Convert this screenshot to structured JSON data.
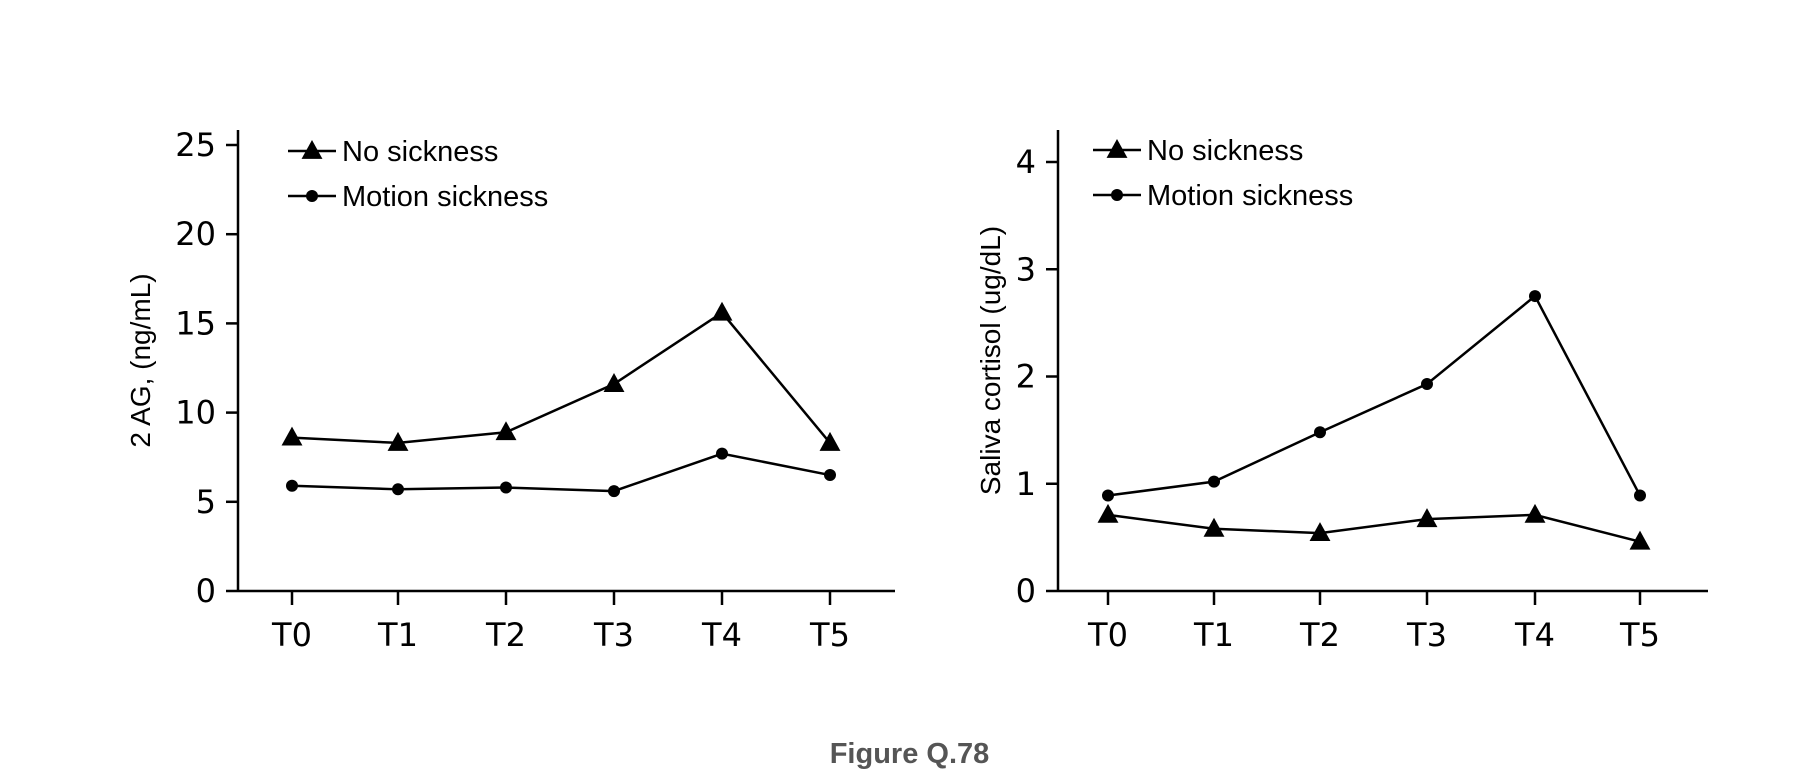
{
  "figure": {
    "caption": "Figure Q.78"
  },
  "chart_data": [
    {
      "type": "line",
      "title": "",
      "xlabel": "",
      "ylabel": "2 AG, (ng/mL)",
      "categories": [
        "T0",
        "T1",
        "T2",
        "T3",
        "T4",
        "T5"
      ],
      "ylim": [
        0,
        25
      ],
      "yticks": [
        0,
        5,
        10,
        15,
        20,
        25
      ],
      "ytick_labels": [
        "0",
        "5",
        "10",
        "15",
        "20",
        "25"
      ],
      "grid": false,
      "legend_position": "top-left",
      "series": [
        {
          "name": "No sickness",
          "marker": "triangle",
          "color": "#000000",
          "values": [
            8.6,
            8.3,
            8.9,
            11.6,
            15.6,
            8.3
          ]
        },
        {
          "name": "Motion sickness",
          "marker": "circle",
          "color": "#000000",
          "values": [
            5.9,
            5.7,
            5.8,
            5.6,
            7.7,
            6.5
          ]
        }
      ]
    },
    {
      "type": "line",
      "title": "",
      "xlabel": "",
      "ylabel": "Saliva cortisol (ug/dL)",
      "categories": [
        "T0",
        "T1",
        "T2",
        "T3",
        "T4",
        "T5"
      ],
      "ylim": [
        0,
        4.3
      ],
      "yticks": [
        0,
        1,
        2,
        3,
        4
      ],
      "ytick_labels": [
        "0",
        "1",
        "2",
        "3",
        "4"
      ],
      "grid": false,
      "legend_position": "top-left",
      "series": [
        {
          "name": "No sickness",
          "marker": "triangle",
          "color": "#000000",
          "values": [
            0.71,
            0.58,
            0.54,
            0.67,
            0.71,
            0.46
          ]
        },
        {
          "name": "Motion sickness",
          "marker": "circle",
          "color": "#000000",
          "values": [
            0.89,
            1.02,
            1.48,
            1.93,
            2.75,
            0.89
          ]
        }
      ]
    }
  ]
}
